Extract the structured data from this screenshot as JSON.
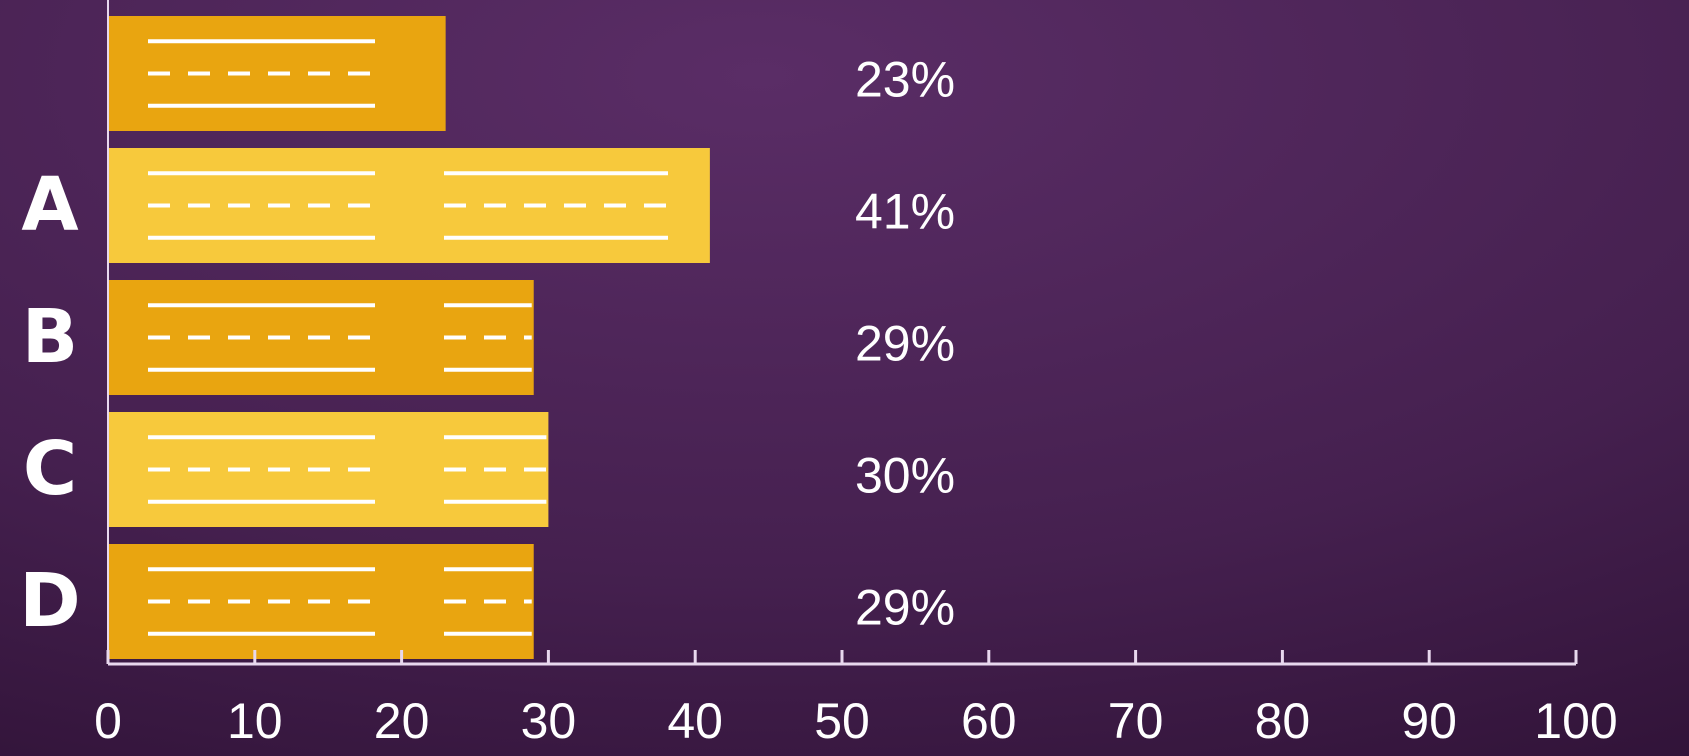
{
  "chart_data": {
    "type": "hbar",
    "categories": [
      null,
      "A",
      "B",
      "C",
      "D"
    ],
    "values": [
      23,
      41,
      29,
      30,
      29
    ],
    "value_labels": [
      "23%",
      "41%",
      "29%",
      "30%",
      "29%"
    ],
    "colors": [
      "#e9a510",
      "#f7c93c",
      "#e9a510",
      "#f7c93c",
      "#e9a510"
    ],
    "xlim": [
      0,
      100
    ],
    "xticks": [
      0,
      10,
      20,
      30,
      40,
      50,
      60,
      70,
      80,
      90,
      100
    ]
  }
}
